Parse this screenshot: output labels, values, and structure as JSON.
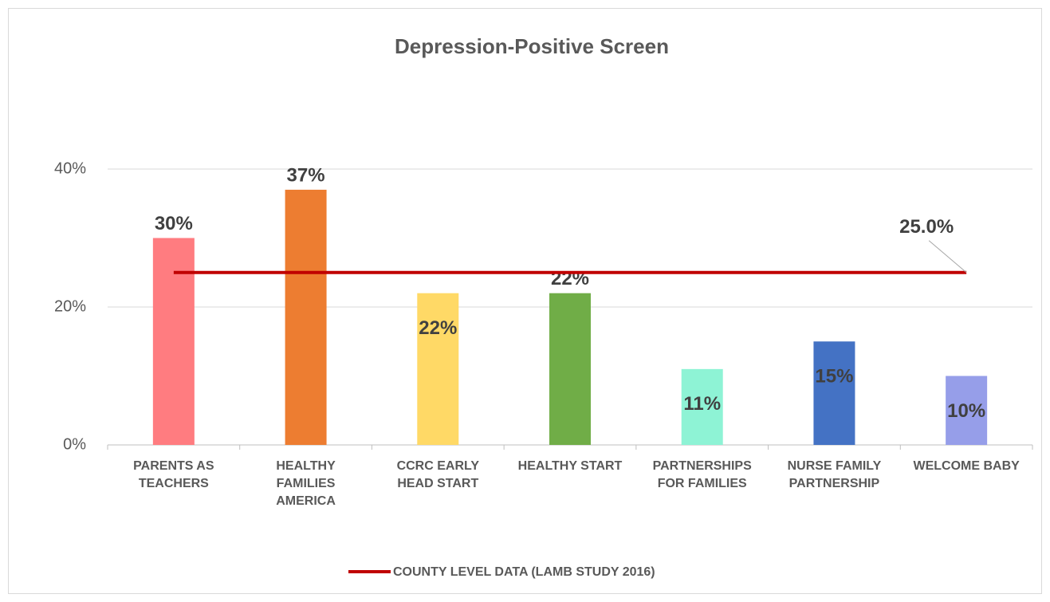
{
  "chart_data": {
    "type": "bar",
    "title": "Depression-Positive Screen",
    "categories": [
      "PARENTS AS TEACHERS",
      "HEALTHY FAMILIES AMERICA",
      "CCRC EARLY HEAD START",
      "HEALTHY START",
      "PARTNERSHIPS FOR FAMILIES",
      "NURSE FAMILY PARTNERSHIP",
      "WELCOME BABY"
    ],
    "values": [
      30,
      37,
      22,
      22,
      11,
      15,
      10
    ],
    "value_labels": [
      "30%",
      "37%",
      "22%",
      "22%",
      "11%",
      "15%",
      "10%"
    ],
    "colors": [
      "#ff7c80",
      "#ed7d31",
      "#ffd966",
      "#70ad47",
      "#8ef3d5",
      "#4472c4",
      "#969ee9"
    ],
    "ylim": [
      0,
      40
    ],
    "yticks": [
      {
        "value": 0,
        "label": "0%"
      },
      {
        "value": 20,
        "label": "20%"
      },
      {
        "value": 40,
        "label": "40%"
      }
    ],
    "grid": true,
    "reference_line": {
      "name": "COUNTY LEVEL DATA (LAMB STUDY 2016)",
      "value": 25,
      "value_label": "25.0%",
      "color": "#c00000"
    },
    "legend": "bottom"
  }
}
